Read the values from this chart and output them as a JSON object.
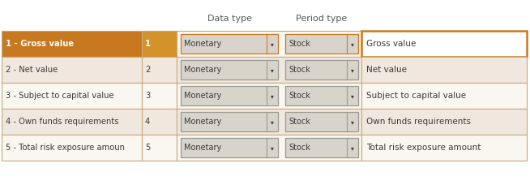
{
  "header_labels": [
    "Data type",
    "Period type"
  ],
  "rows": [
    {
      "label": "1 - Gross value",
      "num": "1",
      "monetary": "Monetary",
      "stock": "Stock",
      "desc": "Gross value",
      "selected": true
    },
    {
      "label": "2 - Net value",
      "num": "2",
      "monetary": "Monetary",
      "stock": "Stock",
      "desc": "Net value",
      "selected": false
    },
    {
      "label": "3 - Subject to capital value",
      "num": "3",
      "monetary": "Monetary",
      "stock": "Stock",
      "desc": "Subject to capital value",
      "selected": false
    },
    {
      "label": "4 - Own funds requirements",
      "num": "4",
      "monetary": "Monetary",
      "stock": "Stock",
      "desc": "Own funds requirements",
      "selected": false
    },
    {
      "label": "5 - Total risk exposure amoun",
      "num": "5",
      "monetary": "Monetary",
      "stock": "Stock",
      "desc": "Total risk exposure amount",
      "selected": false
    }
  ],
  "orange_color": "#C8781E",
  "orange_light": "#D4922A",
  "row_bg_light": "#FAF6F0",
  "row_bg_medium": "#F0E8DE",
  "text_dark": "#3A3A3A",
  "text_white": "#FFFFFF",
  "dropdown_bg": "#D8D3CB",
  "dropdown_border": "#999990",
  "table_border": "#C8A878",
  "fig_bg": "#FFFFFF",
  "header_color": "#555555"
}
